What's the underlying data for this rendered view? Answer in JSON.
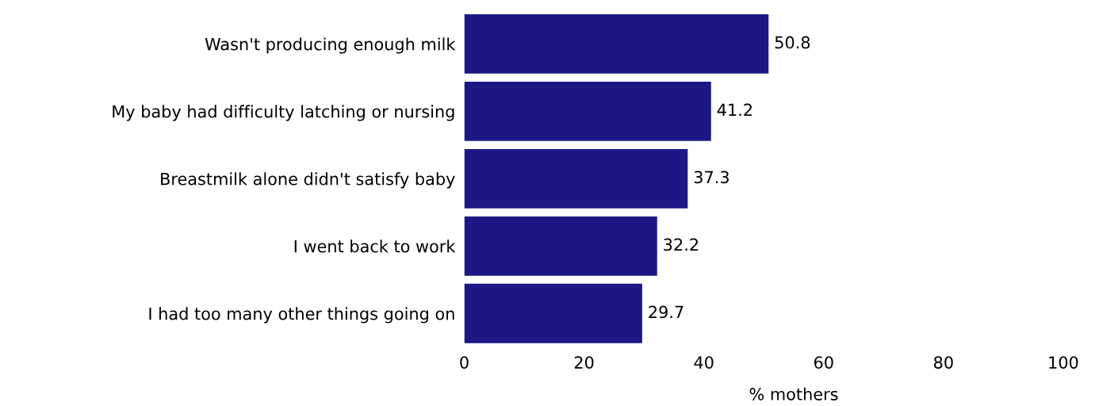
{
  "chart_data": {
    "type": "bar",
    "orientation": "horizontal",
    "xlabel": "% mothers",
    "categories": [
      "Wasn't producing enough milk",
      "My baby had difficulty latching or nursing",
      "Breastmilk alone didn't satisfy baby",
      "I went back to work",
      "I had too many other things going on"
    ],
    "values": [
      50.8,
      41.2,
      37.3,
      32.2,
      29.7
    ],
    "color": "#1b1886",
    "xlim": [
      0,
      100
    ],
    "xticks": [
      0,
      20,
      40,
      60,
      80,
      100
    ],
    "data_labels": true,
    "grid": false,
    "legend": false
  }
}
